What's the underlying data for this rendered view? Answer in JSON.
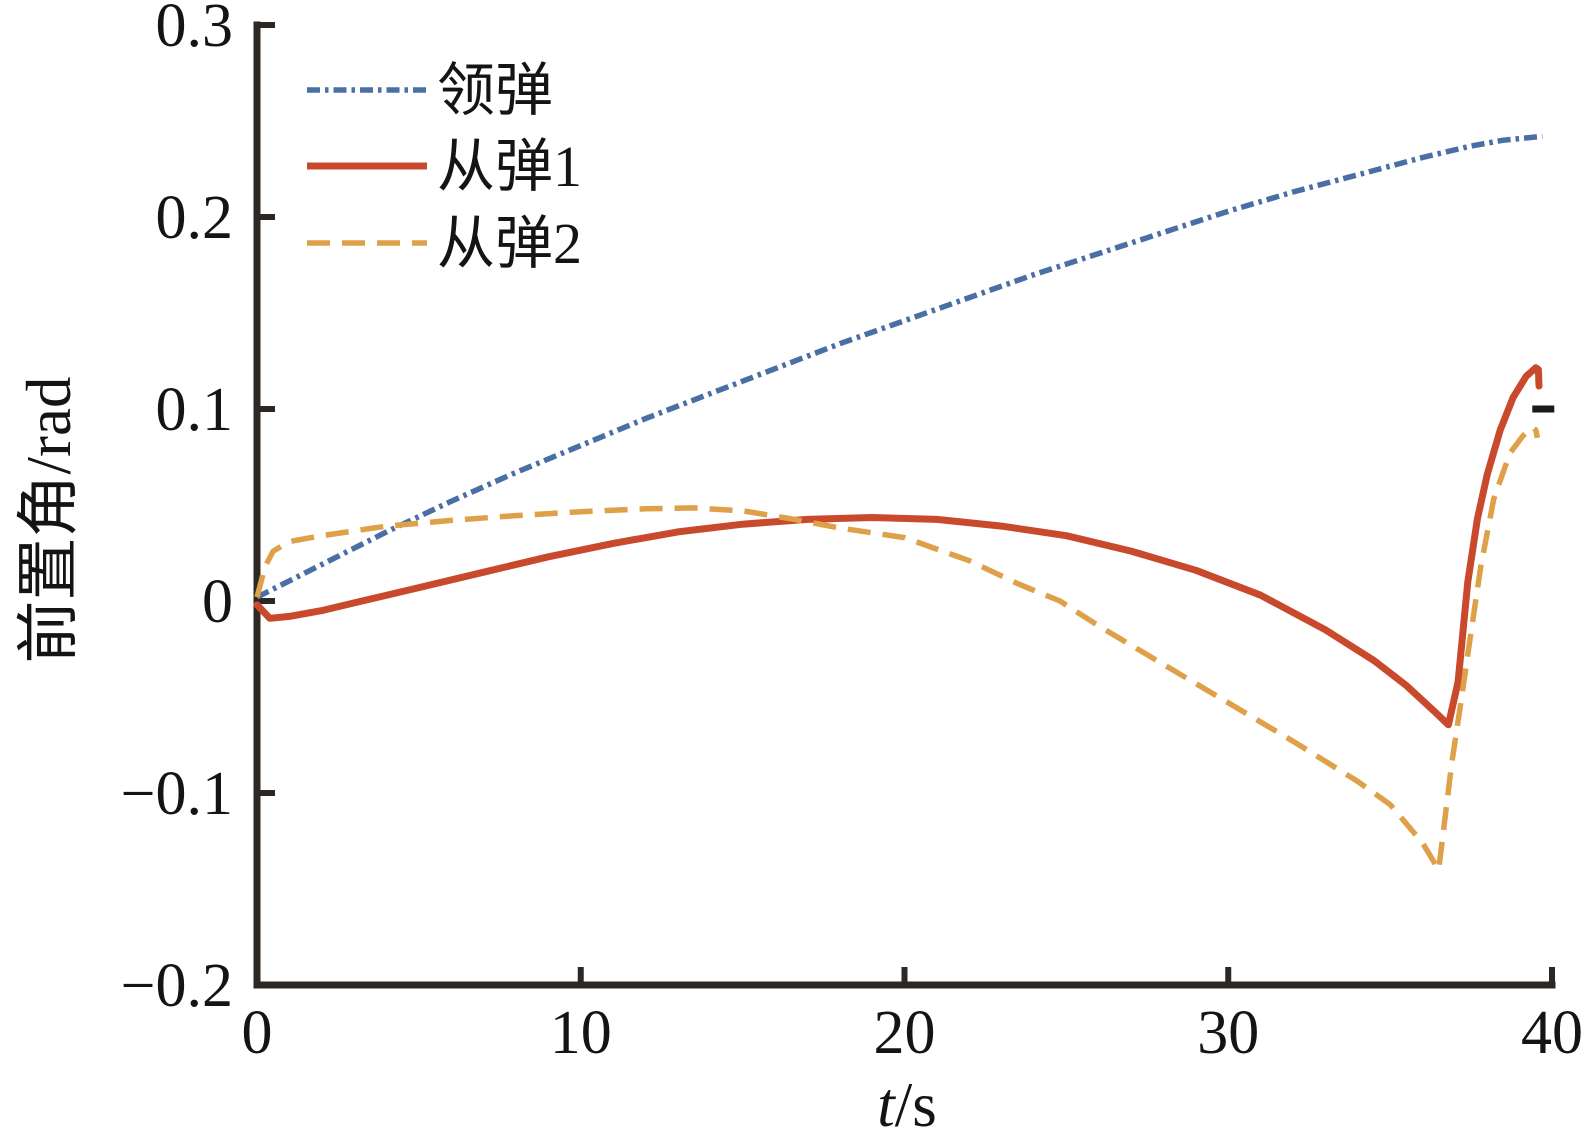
{
  "figure": {
    "background": "#FFFFFF",
    "axis_color": "#2D2824",
    "text_color": "#141414",
    "end_marker_color": "#1A1A1A",
    "xlabel_italic": "t",
    "xlabel_rest": "/s",
    "ylabel": "前置角/rad",
    "x_tick_labels": [
      "0",
      "10",
      "20",
      "30",
      "40"
    ],
    "y_tick_labels": [
      "−0.2",
      "−0.1",
      "0",
      "0.1",
      "0.2",
      "0.3"
    ]
  },
  "chart_data": {
    "type": "line",
    "title": "",
    "xlabel": "t/s",
    "ylabel": "前置角/rad",
    "xlim": [
      0,
      40
    ],
    "ylim": [
      -0.2,
      0.3
    ],
    "x_ticks": [
      0,
      10,
      20,
      30,
      40
    ],
    "y_ticks": [
      -0.2,
      -0.1,
      0,
      0.1,
      0.2,
      0.3
    ],
    "grid": false,
    "legend_position": "upper-left-inside",
    "series": [
      {
        "id": "lead-missile",
        "name": "领弹",
        "color": "#4A6FA5",
        "line_style": "dashdot",
        "width": 5.5,
        "points": [
          [
            0,
            0.002
          ],
          [
            2,
            0.019
          ],
          [
            4,
            0.036
          ],
          [
            6,
            0.052
          ],
          [
            8,
            0.067
          ],
          [
            10,
            0.081
          ],
          [
            12,
            0.095
          ],
          [
            14,
            0.108
          ],
          [
            16,
            0.121
          ],
          [
            18,
            0.134
          ],
          [
            20,
            0.146
          ],
          [
            22,
            0.158
          ],
          [
            24,
            0.17
          ],
          [
            26,
            0.181
          ],
          [
            28,
            0.192
          ],
          [
            30,
            0.203
          ],
          [
            32,
            0.213
          ],
          [
            34,
            0.222
          ],
          [
            36,
            0.231
          ],
          [
            37.5,
            0.237
          ],
          [
            38.5,
            0.24
          ],
          [
            39.7,
            0.242
          ]
        ]
      },
      {
        "id": "follower-1",
        "name": "从弹1",
        "color": "#C9492C",
        "line_style": "solid",
        "width": 7,
        "points": [
          [
            0,
            -0.002
          ],
          [
            0.4,
            -0.009
          ],
          [
            1,
            -0.008
          ],
          [
            2,
            -0.005
          ],
          [
            3,
            -0.001
          ],
          [
            5,
            0.007
          ],
          [
            7,
            0.015
          ],
          [
            9,
            0.023
          ],
          [
            11,
            0.03
          ],
          [
            13,
            0.036
          ],
          [
            15,
            0.04
          ],
          [
            17,
            0.0425
          ],
          [
            19,
            0.0435
          ],
          [
            21,
            0.0425
          ],
          [
            23,
            0.039
          ],
          [
            25,
            0.034
          ],
          [
            27,
            0.026
          ],
          [
            29,
            0.016
          ],
          [
            31,
            0.003
          ],
          [
            33,
            -0.015
          ],
          [
            34.5,
            -0.031
          ],
          [
            35.5,
            -0.044
          ],
          [
            36.4,
            -0.058
          ],
          [
            36.8,
            -0.0645
          ],
          [
            37.1,
            -0.042
          ],
          [
            37.4,
            0.01
          ],
          [
            37.7,
            0.043
          ],
          [
            38.0,
            0.066
          ],
          [
            38.4,
            0.089
          ],
          [
            38.8,
            0.106
          ],
          [
            39.2,
            0.117
          ],
          [
            39.5,
            0.1215
          ],
          [
            39.58,
            0.1205
          ],
          [
            39.6,
            0.112
          ]
        ]
      },
      {
        "id": "follower-2",
        "name": "从弹2",
        "color": "#DFA04A",
        "line_style": "dashed",
        "width": 5.5,
        "points": [
          [
            0,
            0.002
          ],
          [
            0.25,
            0.018
          ],
          [
            0.5,
            0.026
          ],
          [
            1,
            0.031
          ],
          [
            2,
            0.034
          ],
          [
            4,
            0.039
          ],
          [
            6,
            0.042
          ],
          [
            8,
            0.0445
          ],
          [
            10,
            0.0465
          ],
          [
            12,
            0.048
          ],
          [
            13.5,
            0.0485
          ],
          [
            15,
            0.047
          ],
          [
            16.6,
            0.0425
          ],
          [
            18,
            0.038
          ],
          [
            20,
            0.033
          ],
          [
            22,
            0.021
          ],
          [
            23.5,
            0.009
          ],
          [
            24.8,
            0.0
          ],
          [
            26,
            -0.013
          ],
          [
            28,
            -0.033
          ],
          [
            30,
            -0.053
          ],
          [
            32,
            -0.073
          ],
          [
            34,
            -0.094
          ],
          [
            35,
            -0.106
          ],
          [
            36,
            -0.126
          ],
          [
            36.5,
            -0.14
          ],
          [
            36.9,
            -0.085
          ],
          [
            37.2,
            -0.051
          ],
          [
            37.5,
            -0.016
          ],
          [
            37.8,
            0.018
          ],
          [
            38.2,
            0.053
          ],
          [
            38.7,
            0.077
          ],
          [
            39.1,
            0.086
          ],
          [
            39.4,
            0.0905
          ],
          [
            39.5,
            0.089
          ],
          [
            39.55,
            0.085
          ]
        ]
      }
    ],
    "annotations": [
      {
        "type": "dash-marker",
        "x": 39.7,
        "y": 0.1,
        "color": "#1A1A1A"
      }
    ]
  }
}
